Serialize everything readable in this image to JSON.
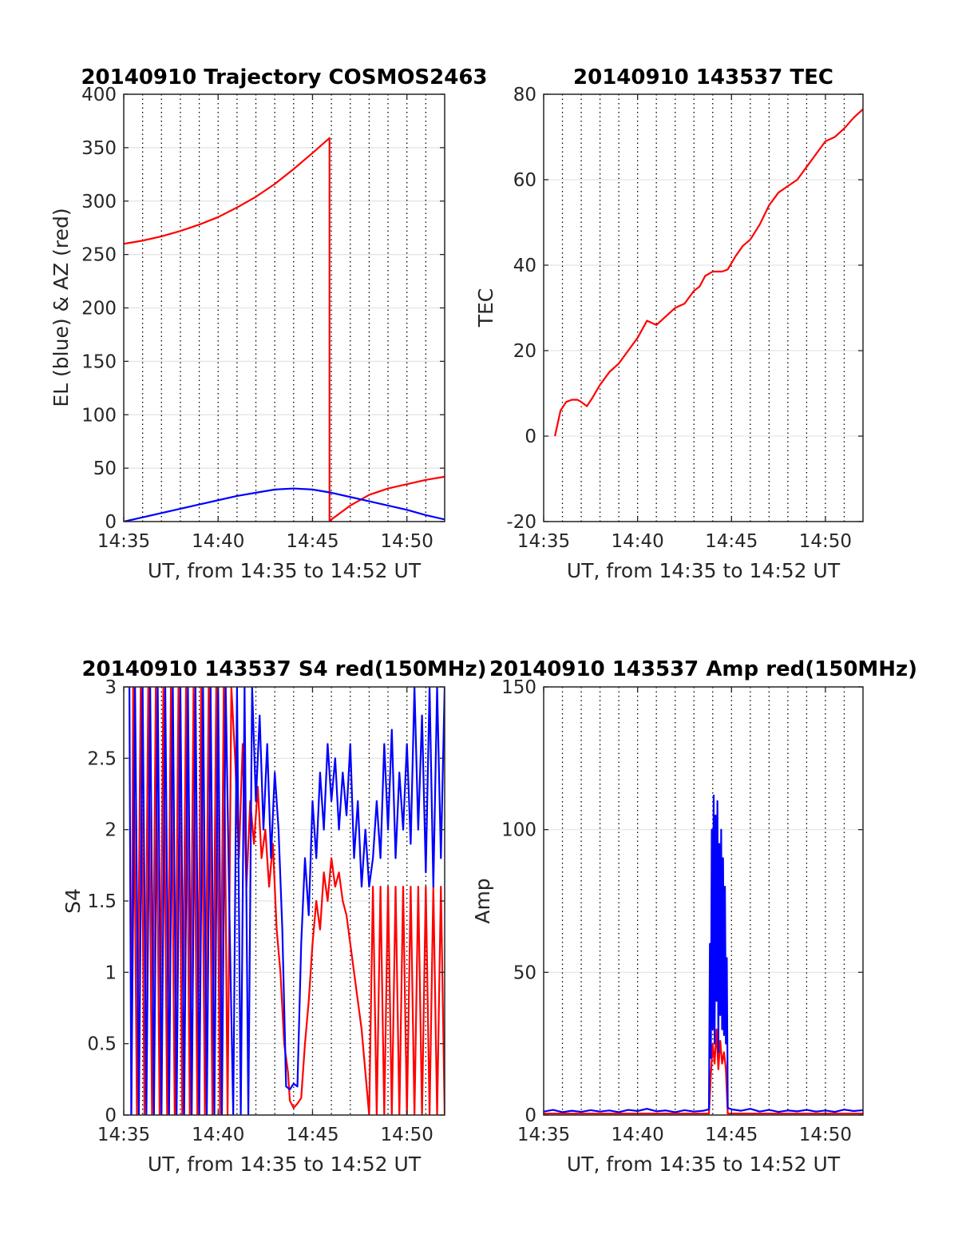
{
  "chart_data": [
    {
      "type": "line",
      "title": "20140910 Trajectory COSMOS2463",
      "xlabel": "UT, from 14:35 to 14:52 UT",
      "ylabel": "EL (blue) & AZ (red)",
      "x_unit": "minutes of hour 14 (UT)",
      "xlim": [
        35,
        52
      ],
      "ylim": [
        0,
        400
      ],
      "xticks": [
        35,
        40,
        45,
        50
      ],
      "xtick_labels": [
        "14:35",
        "14:40",
        "14:45",
        "14:50"
      ],
      "yticks": [
        0,
        50,
        100,
        150,
        200,
        250,
        300,
        350,
        400
      ],
      "ytick_labels": [
        "0",
        "50",
        "100",
        "150",
        "200",
        "250",
        "300",
        "350",
        "400"
      ],
      "minor_x_grid_step": 1,
      "grid": true,
      "series": [
        {
          "color": "#ff0000",
          "x": [
            35.0,
            36.0,
            37.0,
            38.0,
            39.0,
            40.0,
            41.0,
            42.0,
            43.0,
            44.0,
            45.0,
            45.9,
            45.9,
            46.0,
            47.0,
            48.0,
            49.0,
            50.0,
            51.0,
            52.0
          ],
          "y": [
            260,
            263,
            267,
            272,
            278,
            285,
            294,
            304,
            316,
            330,
            345,
            359,
            0,
            2,
            15,
            25,
            31,
            35,
            39,
            42
          ]
        },
        {
          "color": "#0000ff",
          "x": [
            35.0,
            36.0,
            37.0,
            38.0,
            39.0,
            40.0,
            41.0,
            42.0,
            43.0,
            44.0,
            45.0,
            46.0,
            47.0,
            48.0,
            49.0,
            50.0,
            51.0,
            52.0
          ],
          "y": [
            0,
            4,
            8,
            12,
            16,
            20,
            24,
            27,
            30,
            31,
            30,
            27,
            23,
            19,
            15,
            11,
            6,
            2
          ]
        }
      ]
    },
    {
      "type": "line",
      "title": "20140910 143537 TEC",
      "xlabel": "UT, from 14:35 to 14:52 UT",
      "ylabel": "TEC",
      "x_unit": "minutes of hour 14 (UT)",
      "xlim": [
        35,
        52
      ],
      "ylim": [
        -20,
        80
      ],
      "xticks": [
        35,
        40,
        45,
        50
      ],
      "xtick_labels": [
        "14:35",
        "14:40",
        "14:45",
        "14:50"
      ],
      "yticks": [
        -20,
        0,
        20,
        40,
        60,
        80
      ],
      "ytick_labels": [
        "-20",
        "0",
        "20",
        "40",
        "60",
        "80"
      ],
      "minor_x_grid_step": 1,
      "grid": true,
      "series": [
        {
          "color": "#ff0000",
          "x": [
            35.6,
            35.9,
            36.2,
            36.5,
            36.8,
            37.0,
            37.3,
            37.6,
            38.0,
            38.5,
            39.0,
            39.5,
            40.0,
            40.5,
            41.0,
            41.5,
            42.0,
            42.5,
            43.0,
            43.3,
            43.6,
            44.0,
            44.5,
            44.8,
            45.2,
            45.6,
            46.0,
            46.5,
            47.0,
            47.5,
            48.0,
            48.5,
            49.0,
            49.5,
            50.0,
            50.5,
            51.0,
            51.5,
            52.0
          ],
          "y": [
            0,
            6,
            8,
            8.5,
            8.5,
            8,
            7,
            9,
            12,
            15,
            17,
            20,
            23,
            27,
            26,
            28,
            30,
            31,
            34,
            35,
            37.5,
            38.5,
            38.5,
            39,
            42,
            44.5,
            46,
            49.5,
            54,
            57,
            58.5,
            60,
            63,
            66,
            69,
            70,
            72,
            74.5,
            76.5
          ]
        }
      ]
    },
    {
      "type": "line",
      "title": "20140910 143537 S4 red(150MHz)",
      "xlabel": "UT, from 14:35 to 14:52 UT",
      "ylabel": "S4",
      "x_unit": "minutes of hour 14 (UT)",
      "xlim": [
        35,
        52
      ],
      "ylim": [
        0,
        3
      ],
      "xticks": [
        35,
        40,
        45,
        50
      ],
      "xtick_labels": [
        "14:35",
        "14:40",
        "14:45",
        "14:50"
      ],
      "yticks": [
        0,
        0.5,
        1,
        1.5,
        2,
        2.5,
        3
      ],
      "ytick_labels": [
        "0",
        "0.5",
        "1",
        "1.5",
        "2",
        "2.5",
        "3"
      ],
      "minor_x_grid_step": 1,
      "grid": true,
      "series": [
        {
          "color": "#ff0000",
          "x": [
            35.4,
            35.5,
            35.7,
            35.9,
            36.1,
            36.3,
            36.5,
            36.7,
            36.9,
            37.1,
            37.3,
            37.5,
            37.7,
            37.9,
            38.1,
            38.3,
            38.5,
            38.7,
            38.9,
            39.1,
            39.3,
            39.5,
            39.7,
            39.9,
            40.1,
            40.3,
            40.5,
            40.7,
            40.9,
            41.1,
            41.3,
            41.5,
            41.7,
            41.9,
            42.1,
            42.3,
            42.5,
            42.7,
            42.9,
            43.1,
            43.3,
            43.5,
            43.7,
            43.8,
            44.0,
            44.2,
            44.4,
            44.6,
            44.8,
            45.0,
            45.2,
            45.4,
            45.6,
            45.8,
            46.0,
            46.2,
            46.4,
            46.6,
            46.8,
            47.0,
            47.2,
            47.4,
            47.6,
            47.8,
            48.0,
            48.2,
            48.4,
            48.6,
            48.8,
            49.0,
            49.2,
            49.4,
            49.6,
            49.8,
            50.0,
            50.2,
            50.4,
            50.6,
            50.8,
            51.0,
            51.2,
            51.4,
            51.6,
            51.8,
            52.0
          ],
          "y": [
            0,
            3,
            0,
            3,
            0,
            3,
            0,
            3,
            0,
            3,
            0,
            3,
            0,
            3,
            0,
            3,
            0,
            3,
            0,
            3,
            0,
            3,
            0,
            3,
            0,
            3,
            0,
            3,
            2.5,
            1.8,
            2.6,
            1.6,
            2.2,
            1.9,
            2.3,
            1.8,
            2.0,
            1.6,
            1.9,
            1.3,
            1.0,
            0.5,
            0.3,
            0.1,
            0.05,
            0.08,
            0.12,
            0.5,
            0.8,
            1.2,
            1.5,
            1.3,
            1.7,
            1.5,
            1.8,
            1.6,
            1.7,
            1.5,
            1.4,
            1.2,
            1.0,
            0.8,
            0.6,
            0.3,
            0,
            1.6,
            0,
            1.6,
            0,
            1.6,
            0,
            1.6,
            0,
            1.6,
            0,
            1.6,
            0,
            1.6,
            0,
            1.6,
            0,
            1.6,
            0,
            1.6,
            0
          ]
        },
        {
          "color": "#0000ff",
          "x": [
            35.3,
            35.4,
            35.6,
            35.8,
            36.0,
            36.2,
            36.4,
            36.6,
            36.8,
            37.0,
            37.2,
            37.4,
            37.6,
            37.8,
            38.0,
            38.2,
            38.4,
            38.6,
            38.8,
            39.0,
            39.2,
            39.4,
            39.6,
            39.8,
            40.0,
            40.2,
            40.4,
            40.6,
            40.8,
            41.0,
            41.2,
            41.4,
            41.6,
            41.8,
            42.0,
            42.2,
            42.4,
            42.6,
            42.8,
            43.0,
            43.2,
            43.4,
            43.6,
            43.8,
            44.0,
            44.2,
            44.4,
            44.6,
            44.8,
            45.0,
            45.2,
            45.4,
            45.6,
            45.8,
            46.0,
            46.2,
            46.4,
            46.6,
            46.8,
            47.0,
            47.2,
            47.4,
            47.6,
            47.8,
            48.0,
            48.2,
            48.4,
            48.6,
            48.8,
            49.0,
            49.2,
            49.4,
            49.6,
            49.8,
            50.0,
            50.2,
            50.4,
            50.6,
            50.8,
            51.0,
            51.2,
            51.4,
            51.6,
            51.8,
            52.0
          ],
          "y": [
            3,
            0,
            3,
            0,
            3,
            0,
            3,
            0,
            3,
            0,
            3,
            0,
            3,
            0,
            3,
            0,
            3,
            0,
            3,
            0,
            3,
            0,
            3,
            0,
            3,
            0,
            3,
            1.4,
            0,
            3,
            0,
            3,
            0,
            3,
            2.2,
            2.8,
            2.0,
            2.6,
            1.8,
            2.4,
            2.0,
            1.3,
            0.2,
            0.18,
            0.22,
            0.2,
            1.2,
            1.8,
            1.4,
            2.2,
            1.8,
            2.4,
            2.0,
            2.6,
            2.2,
            2.5,
            2.0,
            2.4,
            2.1,
            2.6,
            1.8,
            2.2,
            1.6,
            2.0,
            1.6,
            1.8,
            2.2,
            1.8,
            2.6,
            2.0,
            2.7,
            1.8,
            2.4,
            2.0,
            2.6,
            1.9,
            3.0,
            2.0,
            2.8,
            1.7,
            3.0,
            1.6,
            3.0,
            1.8,
            3.0
          ]
        }
      ]
    },
    {
      "type": "line",
      "title": "20140910 143537 Amp red(150MHz)",
      "xlabel": "UT, from 14:35 to 14:52 UT",
      "ylabel": "Amp",
      "x_unit": "minutes of hour 14 (UT)",
      "xlim": [
        35,
        52
      ],
      "ylim": [
        0,
        150
      ],
      "xticks": [
        35,
        40,
        45,
        50
      ],
      "xtick_labels": [
        "14:35",
        "14:40",
        "14:45",
        "14:50"
      ],
      "yticks": [
        0,
        50,
        100,
        150
      ],
      "ytick_labels": [
        "0",
        "50",
        "100",
        "150"
      ],
      "minor_x_grid_step": 1,
      "grid": true,
      "series": [
        {
          "color": "#ff0000",
          "x": [
            35.0,
            43.8,
            43.9,
            44.0,
            44.1,
            44.2,
            44.3,
            44.4,
            44.5,
            44.6,
            44.7,
            44.8,
            52.0
          ],
          "y": [
            0.5,
            0.5,
            14,
            25,
            18,
            30,
            16,
            26,
            18,
            22,
            16,
            0.5,
            0.5
          ]
        },
        {
          "color": "#0000ff",
          "x": [
            35.0,
            35.5,
            36.0,
            36.5,
            37.0,
            37.5,
            38.0,
            38.5,
            39.0,
            39.5,
            40.0,
            40.5,
            41.0,
            41.5,
            42.0,
            42.5,
            43.0,
            43.5,
            43.8,
            43.85,
            43.9,
            43.95,
            44.0,
            44.05,
            44.1,
            44.15,
            44.2,
            44.25,
            44.3,
            44.35,
            44.4,
            44.45,
            44.5,
            44.55,
            44.6,
            44.65,
            44.7,
            44.75,
            44.8,
            45.0,
            45.5,
            46.0,
            46.5,
            47.0,
            47.5,
            48.0,
            48.5,
            49.0,
            49.5,
            50.0,
            50.5,
            51.0,
            51.5,
            52.0
          ],
          "y": [
            1.2,
            1.8,
            1.0,
            1.5,
            1.1,
            1.7,
            1.2,
            1.6,
            1.0,
            1.8,
            1.4,
            2.2,
            1.3,
            1.6,
            1.0,
            1.7,
            1.2,
            1.5,
            2.0,
            60,
            20,
            100,
            30,
            112,
            25,
            105,
            40,
            110,
            22,
            95,
            35,
            100,
            30,
            90,
            28,
            80,
            25,
            55,
            2.5,
            2.0,
            1.5,
            2.2,
            1.2,
            1.8,
            1.1,
            1.6,
            1.3,
            1.8,
            1.2,
            1.6,
            1.1,
            1.9,
            1.4,
            1.7
          ]
        }
      ]
    }
  ]
}
